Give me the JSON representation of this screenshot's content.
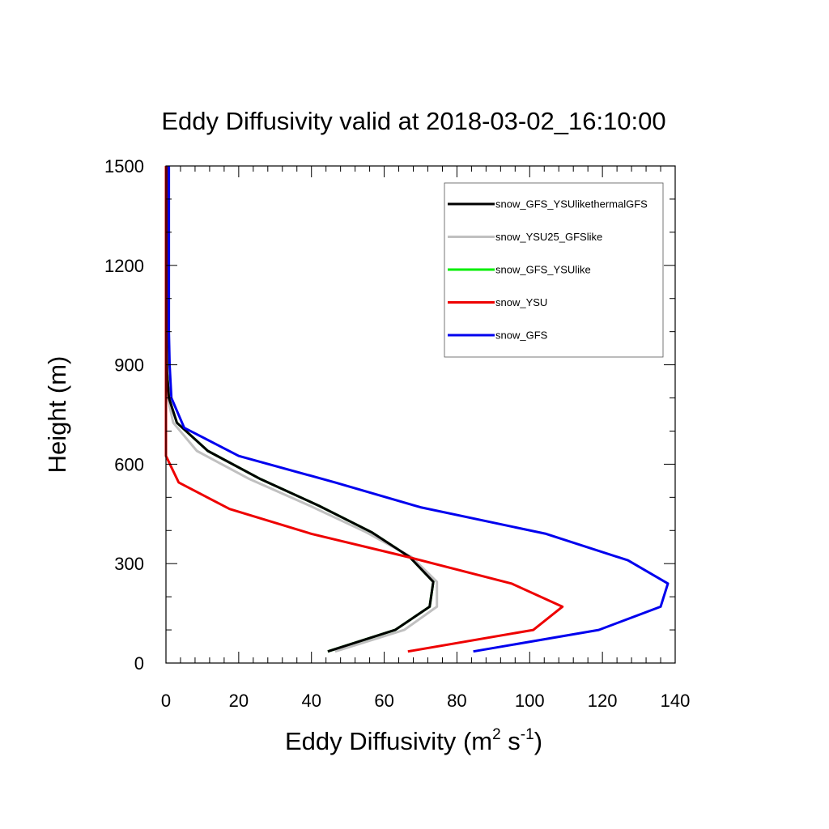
{
  "chart_data": {
    "type": "line",
    "title": "Eddy Diffusivity valid at 2018-03-02_16:10:00",
    "xlabel": "Eddy Diffusivity",
    "xlabel_unit_base": "(m",
    "xlabel_unit_exp1": "2",
    "xlabel_unit_mid": " s",
    "xlabel_unit_exp2": "-1",
    "xlabel_unit_end": ")",
    "ylabel": "Height (m)",
    "xlim": [
      0,
      140
    ],
    "ylim": [
      0,
      1500
    ],
    "xticks": [
      0,
      20,
      40,
      60,
      80,
      100,
      120,
      140
    ],
    "yticks": [
      0,
      300,
      600,
      900,
      1200,
      1500
    ],
    "xtick_labels": [
      "0",
      "20",
      "40",
      "60",
      "80",
      "100",
      "120",
      "140"
    ],
    "ytick_labels": [
      "0",
      "300",
      "600",
      "900",
      "1200",
      "1500"
    ],
    "grid": false,
    "legend_position": "top-right",
    "series": [
      {
        "name": "snow_GFS_YSUlikethermalGFS",
        "color": "#000000",
        "x": [
          44.5,
          63,
          72.5,
          73.5,
          67,
          56.5,
          42,
          26,
          11.5,
          3,
          0.8,
          0.3,
          0.2,
          0.2,
          0.2,
          0.2,
          0.2,
          0.2
        ],
        "y": [
          35,
          100,
          170,
          245,
          320,
          395,
          475,
          555,
          640,
          725,
          800,
          880,
          960,
          1050,
          1150,
          1250,
          1350,
          1500
        ]
      },
      {
        "name": "snow_YSU25_GFSlike",
        "color": "#c0c0c0",
        "x": [
          46.5,
          65.5,
          74.5,
          74.5,
          67.5,
          55,
          39.5,
          23,
          8.5,
          2,
          0.5,
          0.3,
          0.2,
          0.2,
          0.2,
          0.2,
          0.2,
          0.2
        ],
        "y": [
          35,
          100,
          170,
          245,
          320,
          395,
          475,
          555,
          640,
          725,
          800,
          880,
          960,
          1050,
          1150,
          1250,
          1350,
          1500
        ]
      },
      {
        "name": "snow_GFS_YSUlike",
        "color": "#00ee00",
        "x": [
          44.5,
          63,
          72.5,
          73.5,
          67,
          56.5,
          42,
          26,
          11.5,
          3,
          0.8,
          0.3,
          0.2,
          0.2,
          0.2,
          0.2,
          0.2,
          0.2
        ],
        "y": [
          35,
          100,
          170,
          245,
          320,
          395,
          475,
          555,
          640,
          725,
          800,
          880,
          960,
          1050,
          1150,
          1250,
          1350,
          1500
        ]
      },
      {
        "name": "snow_YSU",
        "color": "#ee0000",
        "x": [
          66.5,
          101,
          109,
          95,
          66.5,
          40,
          17.5,
          3.5,
          0,
          0,
          0,
          0,
          0,
          0,
          0,
          0,
          0
        ],
        "y": [
          35,
          100,
          170,
          240,
          320,
          390,
          465,
          545,
          625,
          710,
          800,
          900,
          1000,
          1100,
          1200,
          1300,
          1500
        ]
      },
      {
        "name": "snow_GFS",
        "color": "#0000ee",
        "x": [
          84.5,
          119,
          136,
          138,
          127,
          104.5,
          70,
          46.5,
          20,
          5,
          1.5,
          1,
          0.8,
          0.8,
          0.8,
          0.8,
          0.8
        ],
        "y": [
          35,
          100,
          170,
          240,
          310,
          390,
          470,
          545,
          625,
          710,
          800,
          900,
          1000,
          1100,
          1200,
          1300,
          1500
        ]
      }
    ]
  }
}
